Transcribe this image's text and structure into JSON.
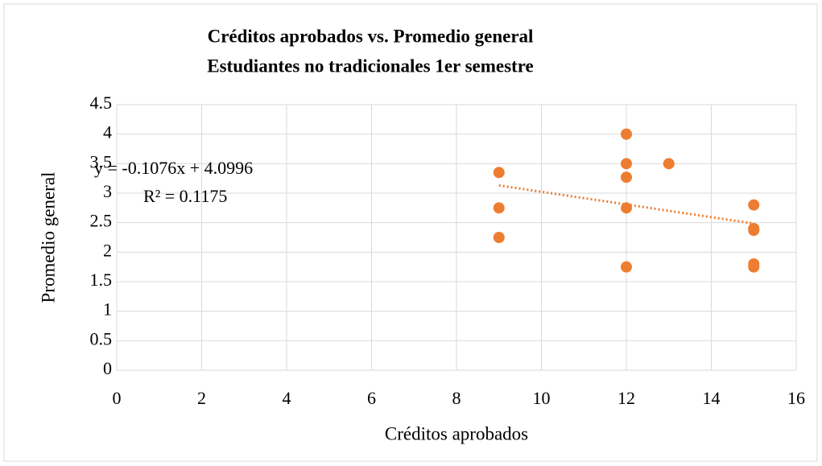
{
  "chart_data": {
    "type": "scatter",
    "title": "Créditos aprobados vs. Promedio general",
    "subtitle": "Estudiantes no tradicionales 1er semestre",
    "x_label": "Créditos aprobados",
    "y_label": "Promedio general",
    "color": "#ed7d31",
    "x": [
      9,
      9,
      9,
      12,
      12,
      12,
      12,
      12,
      13,
      15,
      15,
      15,
      15,
      15
    ],
    "values": [
      3.35,
      2.75,
      2.25,
      4.0,
      3.5,
      3.27,
      2.75,
      1.75,
      3.5,
      2.8,
      2.4,
      2.37,
      1.8,
      1.75
    ],
    "xlim": [
      0,
      16
    ],
    "xticks": [
      0,
      2,
      4,
      6,
      8,
      10,
      12,
      14,
      16
    ],
    "ylim": [
      0,
      4.5
    ],
    "yticks": [
      0,
      0.5,
      1,
      1.5,
      2,
      2.5,
      3,
      3.5,
      4,
      4.5
    ],
    "grid": true,
    "trendline": {
      "slope": -0.1076,
      "intercept": 4.0996,
      "equation": "y = -0.1076x + 4.0996",
      "r2_label": "R² = 0.1175"
    }
  }
}
